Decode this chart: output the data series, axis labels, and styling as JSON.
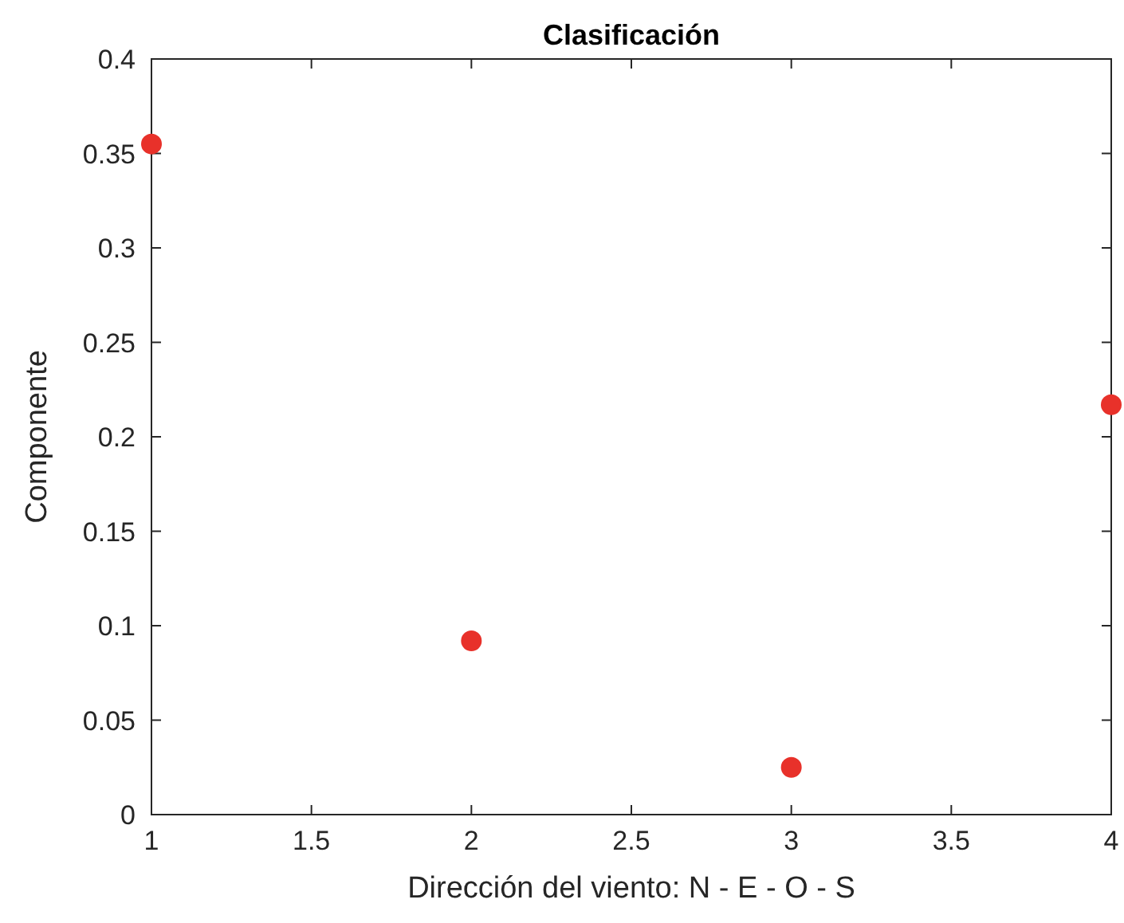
{
  "chart_data": {
    "type": "scatter",
    "title": "Clasificación",
    "xlabel": "Dirección del viento: N - E - O - S",
    "ylabel": "Componente",
    "x": [
      1,
      2,
      3,
      4
    ],
    "series": [
      {
        "color": "#e8312a",
        "values": [
          0.355,
          0.092,
          0.025,
          0.217
        ]
      }
    ],
    "xlim": [
      1,
      4
    ],
    "xticks": [
      1,
      1.5,
      2,
      2.5,
      3,
      3.5,
      4
    ],
    "ylim": [
      0,
      0.4
    ],
    "yticks": [
      0,
      0.05,
      0.1,
      0.15,
      0.2,
      0.25,
      0.3,
      0.35,
      0.4
    ],
    "marker": "circle",
    "grid": false
  }
}
